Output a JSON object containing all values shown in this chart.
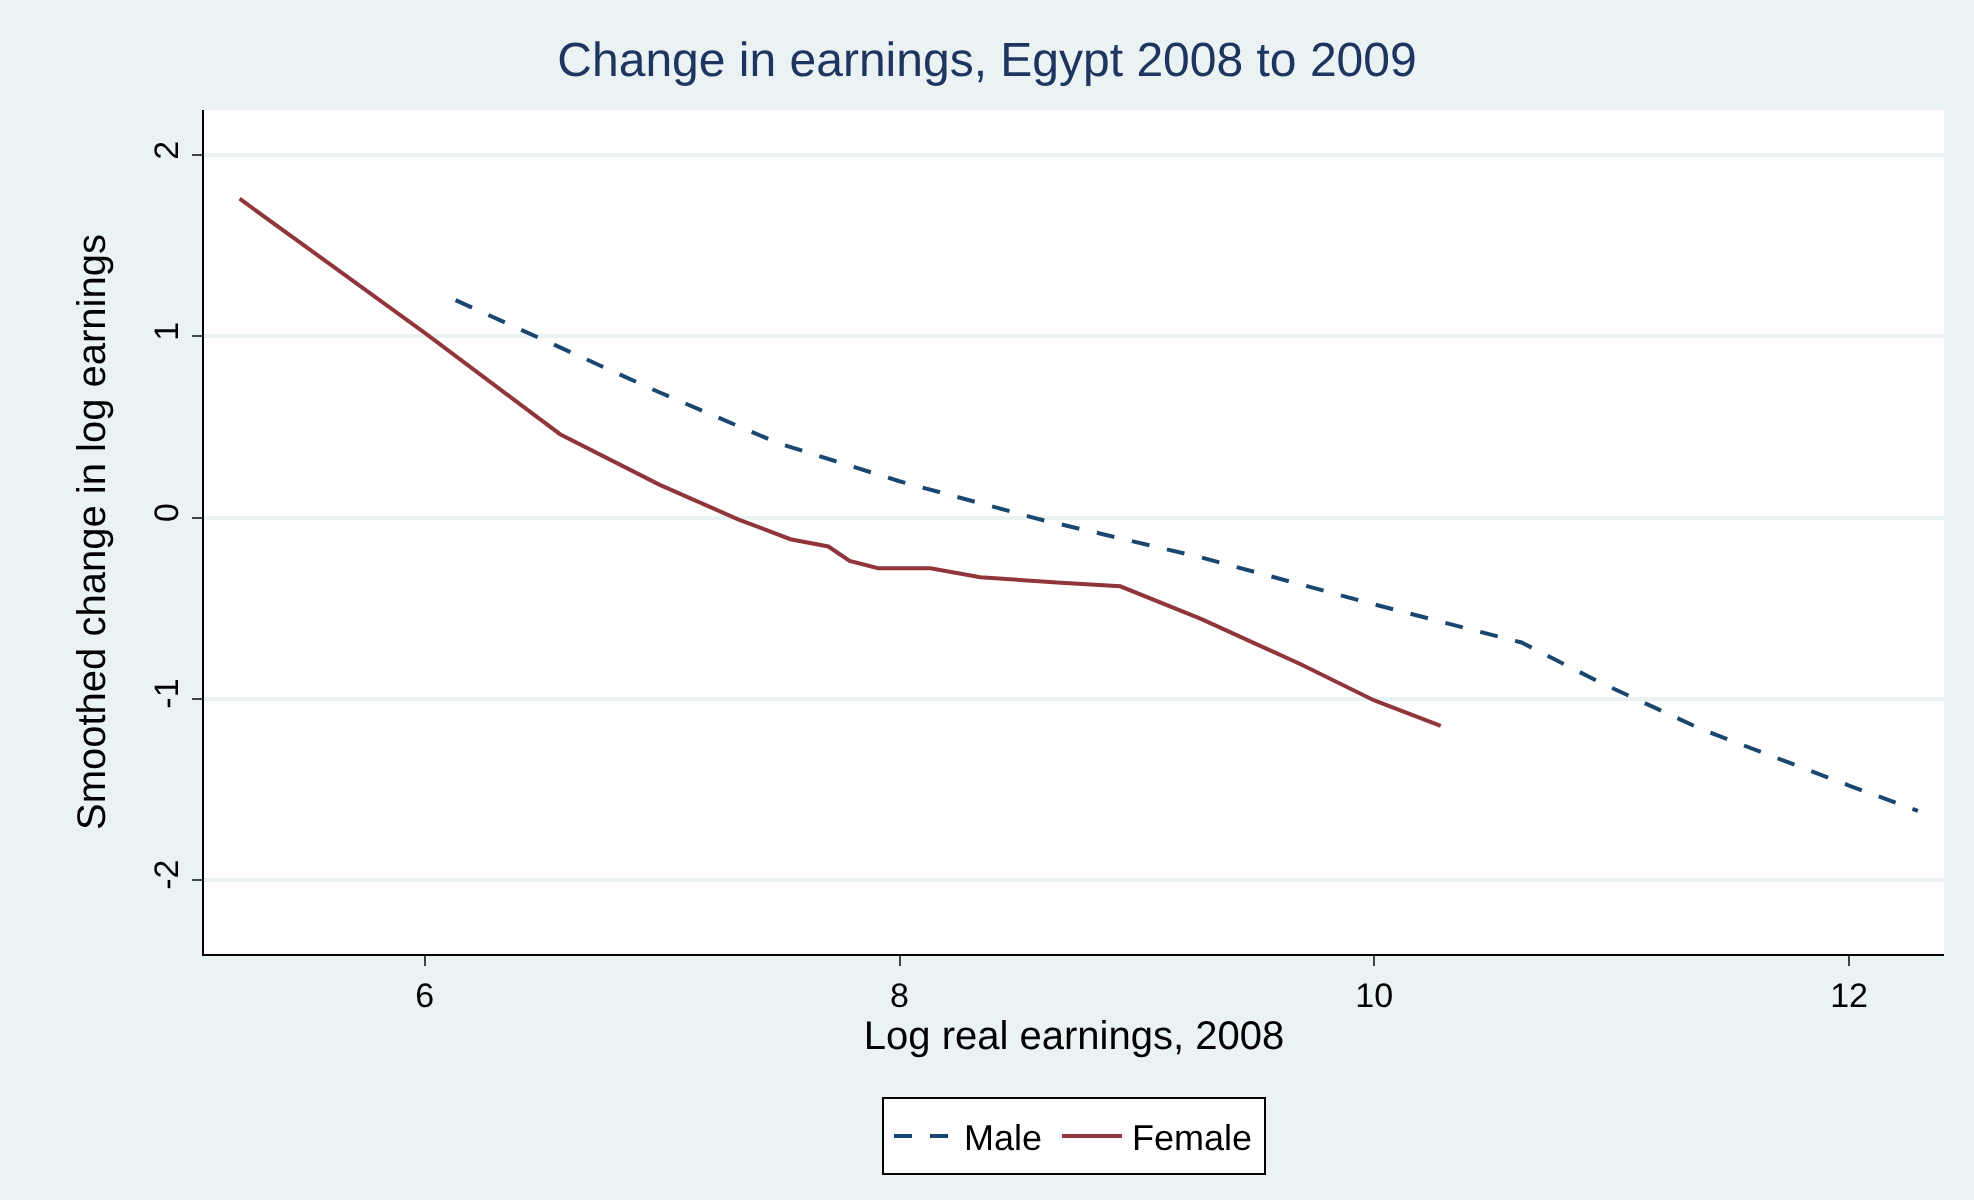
{
  "chart_data": {
    "type": "line",
    "title": "Change in earnings, Egypt 2008 to 2009",
    "xlabel": "Log real earnings, 2008",
    "ylabel": "Smoothed change in log earnings",
    "xlim": [
      5.07,
      12.4
    ],
    "xticks": [
      6,
      8,
      10,
      12
    ],
    "ylim": [
      -2.41,
      2.25
    ],
    "yticks": [
      -2,
      -1,
      0,
      1,
      2
    ],
    "grid": "y",
    "legend": "bottom",
    "line_style": "solid",
    "marker": "none",
    "series": [
      {
        "name": "Male",
        "color": "#1a476f",
        "line_style": "dashed",
        "x": [
          6.13,
          6.99,
          7.49,
          8.0,
          8.59,
          9.27,
          10.0,
          10.62,
          10.95,
          11.38,
          12.0,
          12.29
        ],
        "values": [
          1.2,
          0.69,
          0.41,
          0.2,
          -0.01,
          -0.22,
          -0.48,
          -0.69,
          -0.91,
          -1.17,
          -1.48,
          -1.62
        ]
      },
      {
        "name": "Female",
        "color": "#90353b",
        "x": [
          5.22,
          6.0,
          6.57,
          6.99,
          7.32,
          7.54,
          7.7,
          7.79,
          7.91,
          8.13,
          8.34,
          8.68,
          8.93,
          9.27,
          9.69,
          10.0,
          10.28
        ],
        "values": [
          1.76,
          1.02,
          0.46,
          0.18,
          -0.01,
          -0.12,
          -0.16,
          -0.24,
          -0.28,
          -0.28,
          -0.33,
          -0.36,
          -0.38,
          -0.56,
          -0.81,
          -1.01,
          -1.15
        ]
      }
    ]
  }
}
